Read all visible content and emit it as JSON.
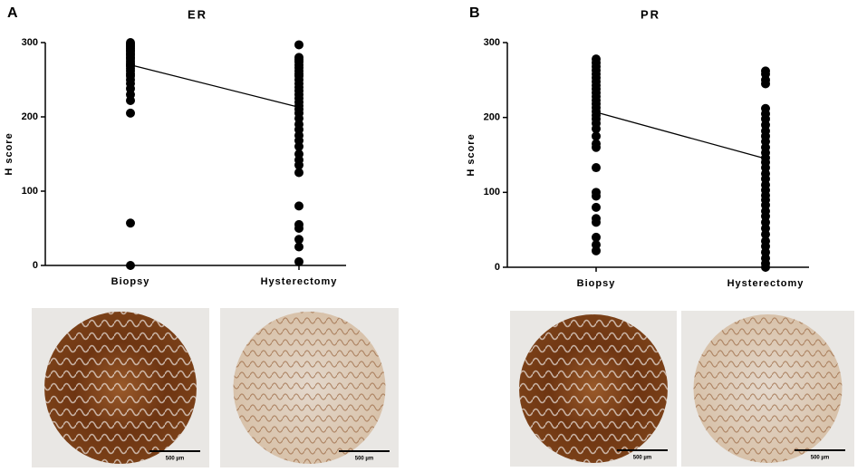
{
  "chart_data": [
    {
      "type": "dot",
      "panel": "A",
      "title": "ER",
      "ylabel": "H score",
      "categories": [
        "Biopsy",
        "Hysterectomy"
      ],
      "values": [
        [
          300,
          298,
          296,
          294,
          292,
          290,
          288,
          285,
          283,
          280,
          278,
          275,
          272,
          270,
          268,
          265,
          262,
          258,
          255,
          250,
          245,
          238,
          230,
          222,
          205,
          57,
          0
        ],
        [
          297,
          280,
          277,
          274,
          270,
          266,
          262,
          258,
          255,
          250,
          245,
          240,
          235,
          230,
          225,
          220,
          215,
          210,
          205,
          198,
          190,
          183,
          175,
          168,
          160,
          150,
          142,
          135,
          125,
          80,
          55,
          50,
          35,
          25,
          5
        ]
      ],
      "line_values": [
        270,
        213
      ],
      "color": "#000000",
      "ylim": [
        0,
        300
      ],
      "yticks": [
        0,
        100,
        200,
        300
      ],
      "image_scale_labels": [
        "500 µm",
        "500 µm"
      ]
    },
    {
      "type": "dot",
      "panel": "B",
      "title": "PR",
      "ylabel": "H score",
      "categories": [
        "Biopsy",
        "Hysterectomy"
      ],
      "values": [
        [
          278,
          273,
          268,
          263,
          258,
          253,
          248,
          243,
          238,
          233,
          228,
          223,
          218,
          213,
          208,
          203,
          198,
          192,
          185,
          175,
          165,
          160,
          133,
          100,
          95,
          80,
          65,
          60,
          40,
          30,
          22
        ],
        [
          262,
          258,
          250,
          245,
          212,
          205,
          198,
          190,
          182,
          175,
          168,
          160,
          153,
          146,
          140,
          133,
          125,
          118,
          110,
          103,
          96,
          90,
          83,
          75,
          68,
          60,
          52,
          44,
          35,
          28,
          20,
          12,
          5,
          0
        ]
      ],
      "line_values": [
        207,
        145
      ],
      "color": "#000000",
      "ylim": [
        0,
        300
      ],
      "yticks": [
        0,
        100,
        200,
        300
      ],
      "image_scale_labels": [
        "500 µm",
        "500 µm"
      ]
    }
  ]
}
